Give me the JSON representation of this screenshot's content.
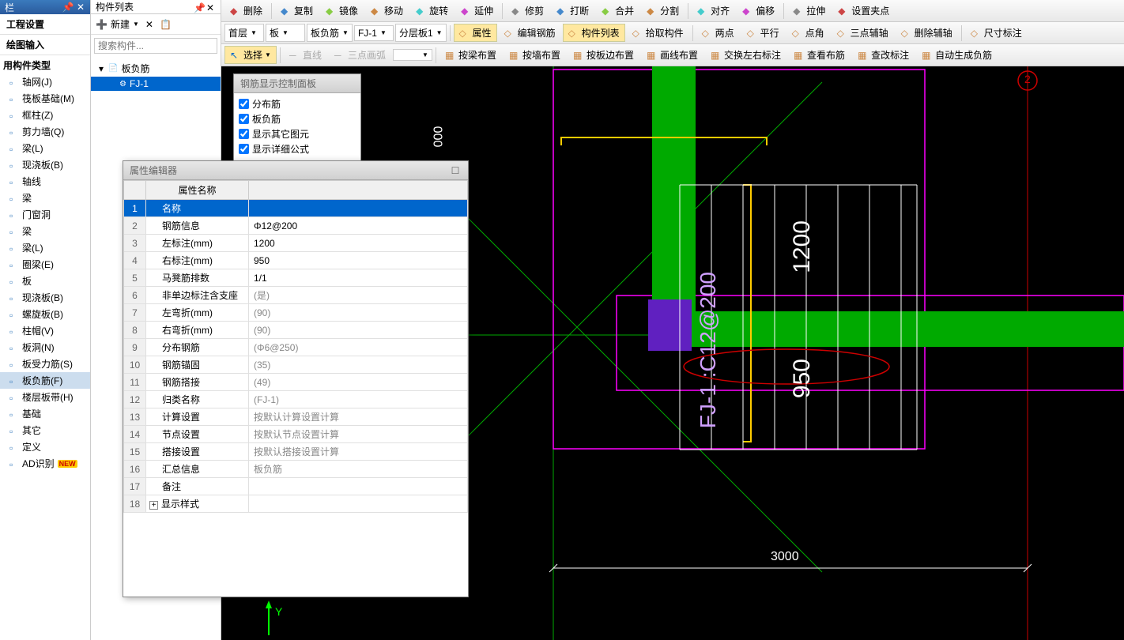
{
  "sidebar": {
    "title": "栏",
    "sections": [
      "工程设置",
      "绘图输入"
    ],
    "tree_header": "用构件类型",
    "tree_items": [
      {
        "label": "轴网(J)"
      },
      {
        "label": "筏板基础(M)"
      },
      {
        "label": "框柱(Z)"
      },
      {
        "label": "剪力墙(Q)"
      },
      {
        "label": "梁(L)"
      },
      {
        "label": "现浇板(B)"
      },
      {
        "label": "轴线"
      },
      {
        "label": "梁"
      },
      {
        "label": "门窗洞"
      },
      {
        "label": "梁"
      },
      {
        "label": "梁(L)"
      },
      {
        "label": "圈梁(E)"
      },
      {
        "label": "板"
      },
      {
        "label": "现浇板(B)"
      },
      {
        "label": "螺旋板(B)"
      },
      {
        "label": "柱帽(V)"
      },
      {
        "label": "板洞(N)"
      },
      {
        "label": "板受力筋(S)"
      },
      {
        "label": "板负筋(F)",
        "active": true
      },
      {
        "label": "楼层板带(H)"
      },
      {
        "label": "基础"
      },
      {
        "label": "其它"
      },
      {
        "label": "定义"
      },
      {
        "label": "AD识别",
        "new": true
      }
    ]
  },
  "components_panel": {
    "title": "构件列表",
    "new_btn": "新建",
    "search_placeholder": "搜索构件...",
    "tree": [
      {
        "label": "板负筋",
        "level": 0,
        "expanded": true
      },
      {
        "label": "FJ-1",
        "level": 1,
        "selected": true
      }
    ]
  },
  "toolbar1": {
    "buttons": [
      "删除",
      "复制",
      "镜像",
      "移动",
      "旋转",
      "延伸",
      "修剪",
      "打断",
      "合并",
      "分割",
      "对齐",
      "偏移",
      "拉伸",
      "设置夹点"
    ]
  },
  "toolbar2": {
    "dropdowns": [
      {
        "label": "首层"
      },
      {
        "label": "板"
      },
      {
        "label": "板负筋"
      },
      {
        "label": "FJ-1"
      },
      {
        "label": "分层板1"
      }
    ],
    "buttons": [
      {
        "label": "属性",
        "active": true
      },
      {
        "label": "编辑钢筋"
      },
      {
        "label": "构件列表",
        "active": true
      },
      {
        "label": "拾取构件"
      },
      {
        "label": "两点"
      },
      {
        "label": "平行"
      },
      {
        "label": "点角"
      },
      {
        "label": "三点辅轴"
      },
      {
        "label": "删除辅轴"
      },
      {
        "label": "尺寸标注"
      }
    ]
  },
  "toolbar3": {
    "select_btn": "选择",
    "buttons": [
      "直线",
      "三点画弧"
    ],
    "buttons2": [
      "按梁布置",
      "按墙布置",
      "按板边布置",
      "画线布置",
      "交换左右标注",
      "查看布筋",
      "查改标注",
      "自动生成负筋"
    ]
  },
  "rebar_panel": {
    "title": "钢筋显示控制面板",
    "checkboxes": [
      "分布筋",
      "板负筋",
      "显示其它图元",
      "显示详细公式"
    ]
  },
  "prop_editor": {
    "title": "属性编辑器",
    "header_name": "属性名称",
    "rows": [
      {
        "num": "1",
        "name": "名称",
        "val": "",
        "selected": true,
        "highlight_val": true
      },
      {
        "num": "2",
        "name": "钢筋信息",
        "val": "Φ12@200"
      },
      {
        "num": "3",
        "name": "左标注(mm)",
        "val": "1200"
      },
      {
        "num": "4",
        "name": "右标注(mm)",
        "val": "950"
      },
      {
        "num": "5",
        "name": "马凳筋排数",
        "val": "1/1"
      },
      {
        "num": "6",
        "name": "非单边标注含支座",
        "val": "(是)",
        "gray": true
      },
      {
        "num": "7",
        "name": "左弯折(mm)",
        "val": "(90)",
        "gray": true
      },
      {
        "num": "8",
        "name": "右弯折(mm)",
        "val": "(90)",
        "gray": true
      },
      {
        "num": "9",
        "name": "分布钢筋",
        "val": "(Φ6@250)",
        "gray": true
      },
      {
        "num": "10",
        "name": "钢筋锚固",
        "val": "(35)",
        "gray": true
      },
      {
        "num": "11",
        "name": "钢筋搭接",
        "val": "(49)",
        "gray": true
      },
      {
        "num": "12",
        "name": "归类名称",
        "val": "(FJ-1)",
        "gray": true
      },
      {
        "num": "13",
        "name": "计算设置",
        "val": "按默认计算设置计算",
        "gray": true
      },
      {
        "num": "14",
        "name": "节点设置",
        "val": "按默认节点设置计算",
        "gray": true
      },
      {
        "num": "15",
        "name": "搭接设置",
        "val": "按默认搭接设置计算",
        "gray": true
      },
      {
        "num": "16",
        "name": "汇总信息",
        "val": "板负筋",
        "gray": true
      },
      {
        "num": "17",
        "name": "备注",
        "val": ""
      },
      {
        "num": "18",
        "name": "显示样式",
        "val": "",
        "expandable": true
      }
    ]
  },
  "canvas": {
    "dim_000": "000",
    "dim_3000": "3000",
    "dim_1200": "1200",
    "dim_950": "950",
    "label_fj1": "FJ-1 :C12@200",
    "axis_2": "2",
    "axis_y": "Y"
  }
}
